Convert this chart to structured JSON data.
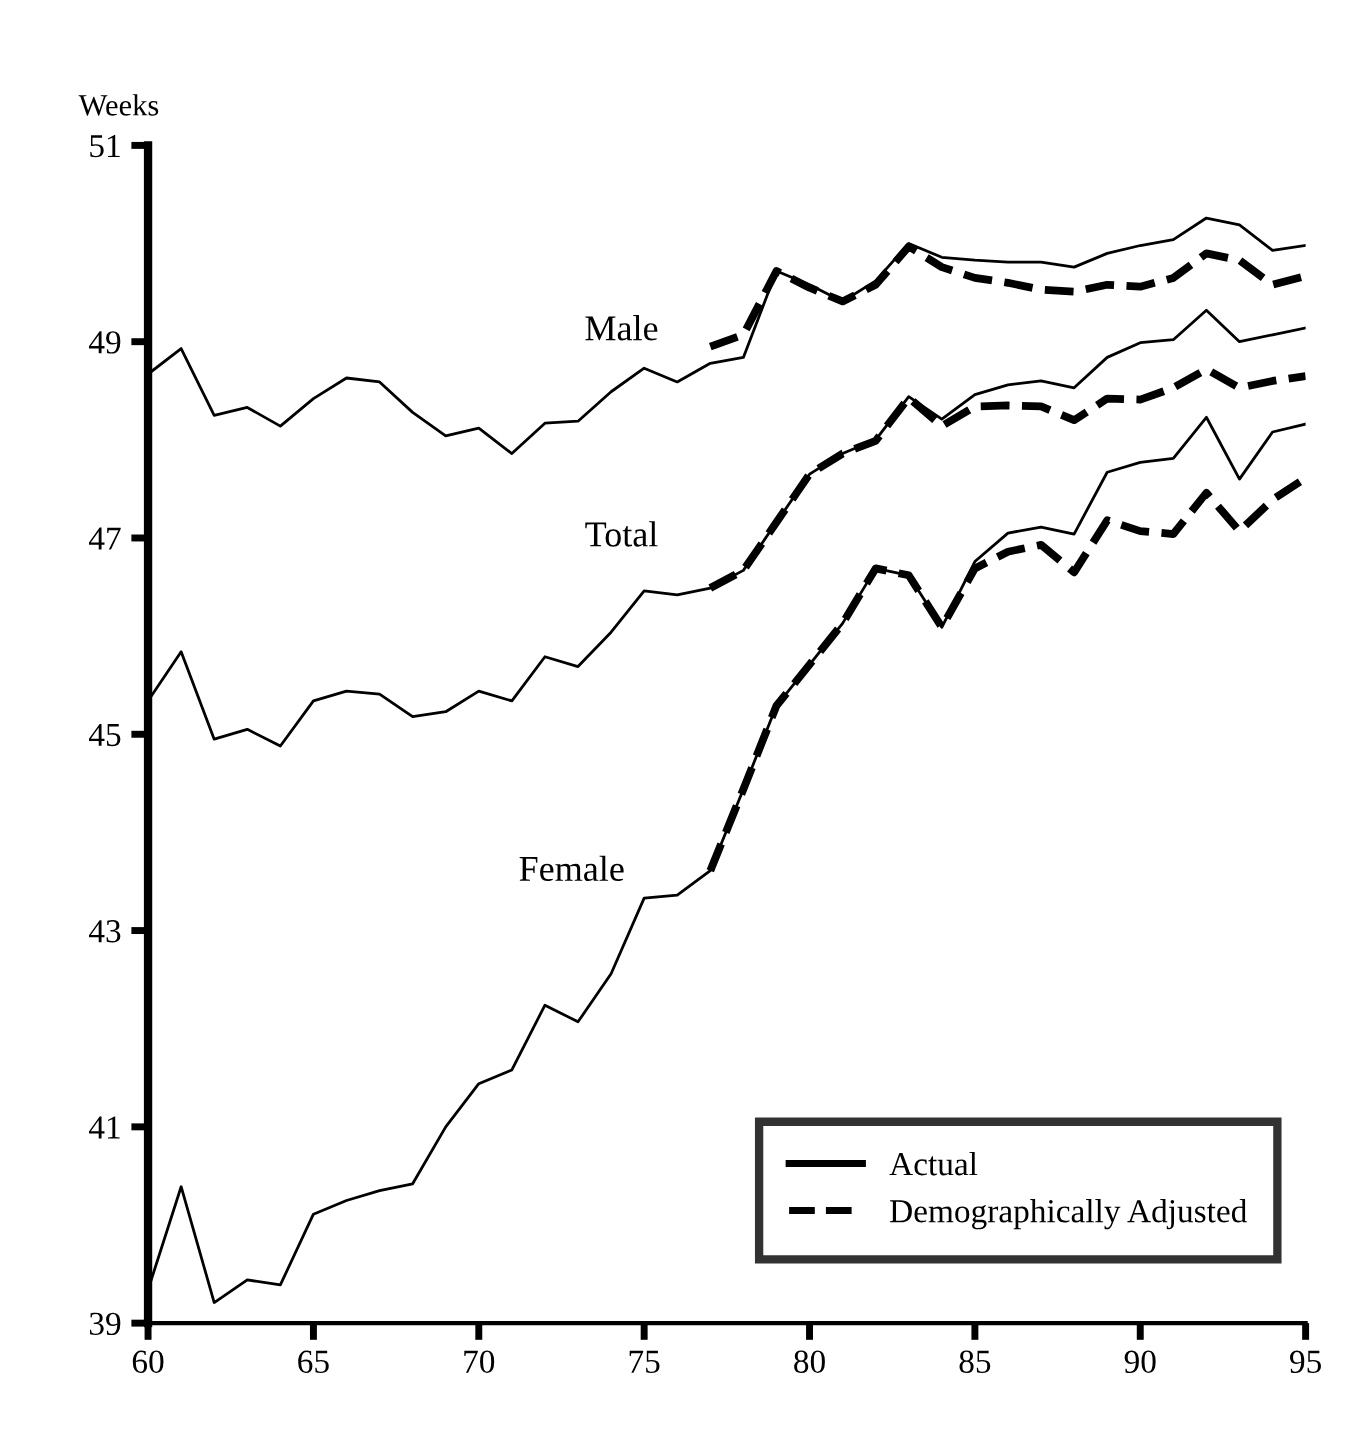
{
  "chart_data": {
    "type": "line",
    "ylabel": "Weeks",
    "xlim": [
      60,
      95
    ],
    "xticks": [
      60,
      65,
      70,
      75,
      80,
      85,
      90,
      {
        "value": 95,
        "label": "95"
      }
    ],
    "ylim": [
      39,
      51
    ],
    "yticks": [
      39,
      41,
      43,
      45,
      47,
      49,
      51
    ],
    "grid": false,
    "legend": "bottom right",
    "marker": "none",
    "series": [
      {
        "name": "Actual",
        "color": "#000000",
        "line_style": "solid",
        "x": [
          60,
          61,
          62,
          63,
          64,
          65,
          66,
          67,
          68,
          69,
          70,
          71,
          72,
          73,
          74,
          75,
          76,
          77,
          78,
          79,
          80,
          81,
          82,
          83,
          84,
          85,
          86,
          87,
          88,
          89,
          90,
          91,
          92,
          93,
          94,
          95
        ],
        "values": [
          48.67,
          48.93,
          48.25,
          48.33,
          48.14,
          48.42,
          48.63,
          48.59,
          48.28,
          48.04,
          48.12,
          47.86,
          48.17,
          48.19,
          48.49,
          48.73,
          48.59,
          48.78,
          48.84,
          49.72,
          49.58,
          49.41,
          49.62,
          50.0,
          49.86,
          49.83,
          49.81,
          49.81,
          49.76,
          49.9,
          49.98,
          50.04,
          50.26,
          50.19,
          49.93,
          49.98
        ]
      },
      {
        "color": "#000000",
        "line_style": "solid",
        "x": [
          60,
          61,
          62,
          63,
          64,
          65,
          66,
          67,
          68,
          69,
          70,
          71,
          72,
          73,
          74,
          75,
          76,
          77,
          78,
          79,
          80,
          81,
          82,
          83,
          84,
          85,
          86,
          87,
          88,
          89,
          90,
          91,
          92,
          93,
          94,
          95
        ],
        "values": [
          45.34,
          45.84,
          44.95,
          45.05,
          44.88,
          45.34,
          45.44,
          45.41,
          45.18,
          45.23,
          45.44,
          45.34,
          45.79,
          45.69,
          46.04,
          46.46,
          46.42,
          46.49,
          46.67,
          47.16,
          47.65,
          47.86,
          48.0,
          48.44,
          48.21,
          48.46,
          48.56,
          48.6,
          48.53,
          48.84,
          48.99,
          49.02,
          49.32,
          49.0,
          49.07,
          49.14
        ]
      },
      {
        "color": "#000000",
        "line_style": "solid",
        "x": [
          60,
          61,
          62,
          63,
          64,
          65,
          66,
          67,
          68,
          69,
          70,
          71,
          72,
          73,
          74,
          75,
          76,
          77,
          78,
          79,
          80,
          81,
          82,
          83,
          84,
          85,
          86,
          87,
          88,
          89,
          90,
          91,
          92,
          93,
          94,
          95
        ],
        "values": [
          39.34,
          40.39,
          39.21,
          39.44,
          39.39,
          40.11,
          40.25,
          40.35,
          40.42,
          41.0,
          41.44,
          41.58,
          42.24,
          42.07,
          42.56,
          43.33,
          43.36,
          43.61,
          44.44,
          45.29,
          45.71,
          46.13,
          46.69,
          46.62,
          46.09,
          46.76,
          47.05,
          47.11,
          47.04,
          47.67,
          47.77,
          47.81,
          48.23,
          47.6,
          48.08,
          48.16
        ]
      },
      {
        "name": "Demographically Adjusted",
        "color": "#000000",
        "line_style": "dashed",
        "x": [
          77,
          78,
          79,
          80,
          81,
          82,
          83,
          84,
          85,
          86,
          87,
          88,
          89,
          90,
          91,
          92,
          93,
          94,
          95
        ],
        "values": [
          48.95,
          49.07,
          49.72,
          49.55,
          49.41,
          49.58,
          49.97,
          49.76,
          49.65,
          49.6,
          49.53,
          49.51,
          49.58,
          49.56,
          49.65,
          49.9,
          49.83,
          49.58,
          49.67
        ]
      },
      {
        "color": "#000000",
        "line_style": "dashed",
        "x": [
          77,
          78,
          79,
          80,
          81,
          82,
          83,
          84,
          85,
          86,
          87,
          88,
          89,
          90,
          91,
          92,
          93,
          94,
          95
        ],
        "values": [
          46.49,
          46.67,
          47.16,
          47.65,
          47.86,
          47.99,
          48.43,
          48.14,
          48.34,
          48.35,
          48.34,
          48.2,
          48.42,
          48.41,
          48.53,
          48.72,
          48.53,
          48.6,
          48.65
        ]
      },
      {
        "color": "#000000",
        "line_style": "dashed",
        "x": [
          77,
          78,
          79,
          80,
          81,
          82,
          83,
          84,
          85,
          86,
          87,
          88,
          89,
          90,
          91,
          92,
          93,
          94,
          95
        ],
        "values": [
          43.61,
          44.44,
          45.29,
          45.71,
          46.13,
          46.69,
          46.62,
          46.09,
          46.69,
          46.86,
          46.93,
          46.65,
          47.18,
          47.07,
          47.04,
          47.46,
          47.07,
          47.39,
          47.61
        ]
      }
    ],
    "annotations": [
      "Male",
      "Total",
      "Female"
    ]
  }
}
